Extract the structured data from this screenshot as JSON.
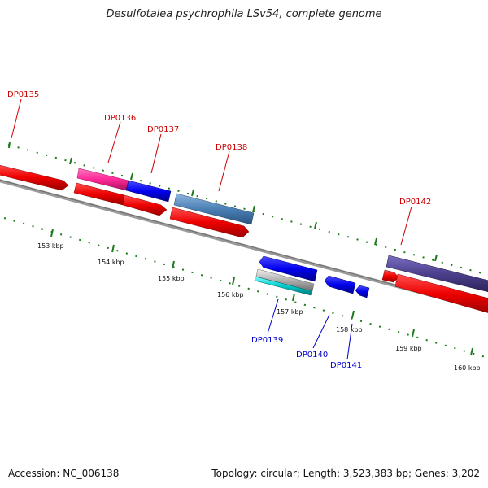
{
  "title": "Desulfotalea psychrophila LSv54, complete genome",
  "footer": {
    "accession": "Accession: NC_006138",
    "summary": "Topology: circular; Length: 3,523,383 bp; Genes: 3,202"
  },
  "colors": {
    "forward_label": "#cc0000",
    "reverse_label": "#0000cc",
    "tick": "#1f7a1f",
    "backbone": "#888888"
  },
  "scale_ticks": [
    {
      "label": "153 kbp"
    },
    {
      "label": "154 kbp"
    },
    {
      "label": "155 kbp"
    },
    {
      "label": "156 kbp"
    },
    {
      "label": "157 kbp"
    },
    {
      "label": "158 kbp"
    },
    {
      "label": "159 kbp"
    },
    {
      "label": "160 kbp"
    }
  ],
  "genes": [
    {
      "id": "DP0135",
      "strand": "forward",
      "color": "#dd0000"
    },
    {
      "id": "DP0136",
      "strand": "forward",
      "color": "#ff3399"
    },
    {
      "id": "DP0137",
      "strand": "forward",
      "color": "#0000dd"
    },
    {
      "id": "DP0138",
      "strand": "forward",
      "color": "#4a7fb5"
    },
    {
      "id": "DP0139",
      "strand": "reverse",
      "color": "#0000dd"
    },
    {
      "id": "DP0140",
      "strand": "reverse",
      "color": "#0000dd"
    },
    {
      "id": "DP0141",
      "strand": "reverse",
      "color": "#0000dd"
    },
    {
      "id": "DP0142",
      "strand": "forward",
      "color": "#4b3f8c"
    }
  ]
}
